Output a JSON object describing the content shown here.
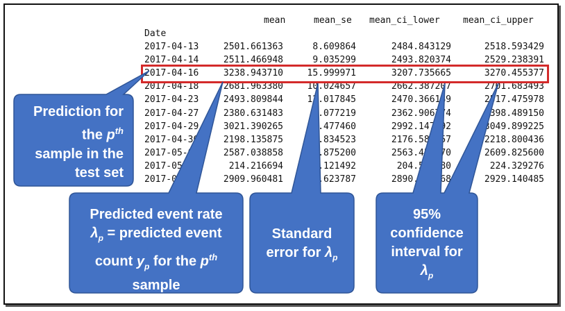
{
  "table": {
    "columns": [
      "mean",
      "mean_se",
      "mean_ci_lower",
      "mean_ci_upper"
    ],
    "index_label": "Date",
    "rows": [
      [
        "2017-04-13",
        "2501.661363",
        "8.609864",
        "2484.843129",
        "2518.593429"
      ],
      [
        "2017-04-14",
        "2511.466948",
        "9.035299",
        "2493.820374",
        "2529.238391"
      ],
      [
        "2017-04-16",
        "3238.943710",
        "15.999971",
        "3207.735665",
        "3270.455377"
      ],
      [
        "2017-04-18",
        "2681.963380",
        "10.024657",
        "2662.387207",
        "2701.683493"
      ],
      [
        "2017-04-23",
        "2493.809844",
        "12.017845",
        "2470.366189",
        "2517.475978"
      ],
      [
        "2017-04-27",
        "2380.631483",
        "9.077219",
        "2362.906774",
        "2398.489150"
      ],
      [
        "2017-04-29",
        "3021.390265",
        "14.477460",
        "2992.147792",
        "3049.899225"
      ],
      [
        "2017-04-30",
        "2198.135875",
        "10.834523",
        "2176.585257",
        "2218.800436"
      ],
      [
        "2017-05-01",
        "2587.038858",
        "11.875200",
        "2563.451070",
        "2609.825600"
      ],
      [
        "2017-05-02",
        "214.216694",
        "5.121492",
        "204.559980",
        "224.329276"
      ],
      [
        "2017-05-03",
        "2909.960481",
        "9.623787",
        "2890.906068",
        "2929.140485"
      ]
    ]
  },
  "callouts": {
    "prediction": [
      "Prediction for",
      "the p^th",
      "sample in the",
      "test set"
    ],
    "event_rate": [
      "Predicted event",
      "rate",
      "λp = predicted event",
      "count yp for the p^th",
      "sample"
    ],
    "std_error": [
      "Standard",
      "error for λp"
    ],
    "conf_interval": [
      "95%",
      "confidence",
      "interval for",
      "λp"
    ]
  },
  "colors": {
    "callout_fill": "#4472c4",
    "highlight_border": "#d32a2a"
  }
}
